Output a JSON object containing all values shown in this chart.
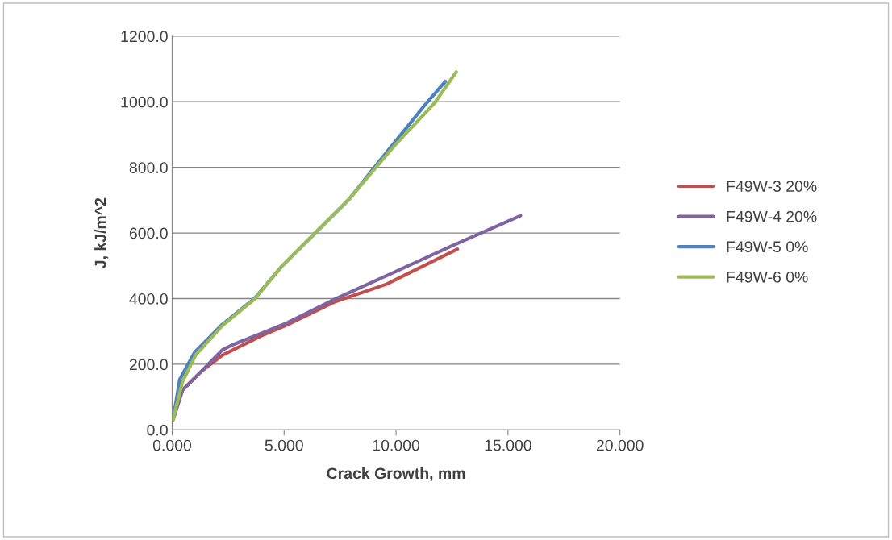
{
  "chart_data": {
    "type": "line",
    "xlabel": "Crack Growth, mm",
    "ylabel": "J, kJ/m^2",
    "xlim": [
      0,
      20
    ],
    "xticks": [
      {
        "value": 0,
        "label": "0.000"
      },
      {
        "value": 5,
        "label": "5.000"
      },
      {
        "value": 10,
        "label": "10.000"
      },
      {
        "value": 15,
        "label": "15.000"
      },
      {
        "value": 20,
        "label": "20.000"
      }
    ],
    "ylim": [
      0,
      1200
    ],
    "yticks": [
      {
        "value": 0,
        "label": "0.0"
      },
      {
        "value": 200,
        "label": "200.0"
      },
      {
        "value": 400,
        "label": "400.0"
      },
      {
        "value": 600,
        "label": "600.0"
      },
      {
        "value": 800,
        "label": "800.0"
      },
      {
        "value": 1000,
        "label": "1000.0"
      },
      {
        "value": 1200,
        "label": "1200.0"
      }
    ],
    "grid": "y",
    "legend": "right",
    "marker": "none",
    "line_style": "solid",
    "series": [
      {
        "name": "F49W-3 20%",
        "color": "#c0504d",
        "x": [
          0.04,
          0.46,
          1.3,
          2.25,
          3.93,
          5.13,
          7.29,
          9.57,
          12.74
        ],
        "values": [
          31,
          121,
          178,
          228,
          285,
          320,
          391,
          444,
          551
        ]
      },
      {
        "name": "F49W-4 20%",
        "color": "#8064a2",
        "x": [
          0.04,
          0.46,
          1.3,
          2.25,
          2.73,
          3.93,
          5.13,
          7.29,
          9.93,
          12.57,
          15.56
        ],
        "values": [
          31,
          121,
          178,
          244,
          260,
          293,
          326,
          399,
          481,
          563,
          653
        ]
      },
      {
        "name": "F49W-5 0%",
        "color": "#4f81bd",
        "x": [
          0.04,
          0.34,
          1.0,
          2.25,
          3.69,
          4.89,
          6.33,
          7.89,
          9.21,
          11.37,
          12.2
        ],
        "values": [
          31,
          154,
          236,
          322,
          401,
          498,
          596,
          702,
          815,
          997,
          1062
        ]
      },
      {
        "name": "F49W-6 0%",
        "color": "#9bbb59",
        "x": [
          0.04,
          0.46,
          1.05,
          2.25,
          3.69,
          4.89,
          6.33,
          7.89,
          9.21,
          9.93,
          11.73,
          12.69
        ],
        "values": [
          31,
          146,
          228,
          318,
          399,
          498,
          596,
          702,
          809,
          866,
          997,
          1091
        ]
      }
    ]
  }
}
